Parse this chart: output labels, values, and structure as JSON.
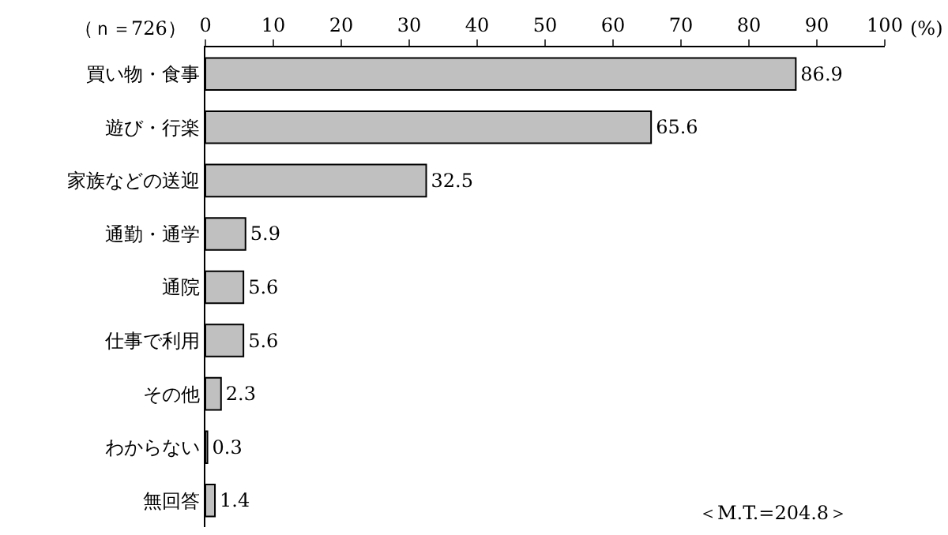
{
  "chart_data": {
    "type": "bar",
    "orientation": "horizontal",
    "categories": [
      "買い物・食事",
      "遊び・行楽",
      "家族などの送迎",
      "通勤・通学",
      "通院",
      "仕事で利用",
      "その他",
      "わからない",
      "無回答"
    ],
    "values": [
      86.9,
      65.6,
      32.5,
      5.9,
      5.6,
      5.6,
      2.3,
      0.3,
      1.4
    ],
    "color": "#c0c0c0",
    "xlim": [
      0,
      100
    ],
    "xticks": [
      0,
      10,
      20,
      30,
      40,
      50,
      60,
      70,
      80,
      90,
      100
    ],
    "xlabel": "(%)",
    "data_labels": true,
    "legend": false,
    "annotations": [
      "（ｎ＝726）",
      "＜M.T.=204.8＞"
    ]
  }
}
